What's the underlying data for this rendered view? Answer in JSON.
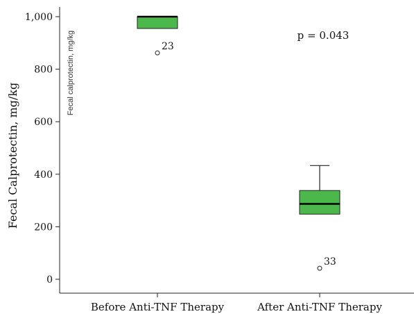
{
  "chart_data": {
    "type": "box",
    "ylabel": "Fecal Calprotectin, mg/kg",
    "inner_ylabel": "Fecal calprotectin, mg/kg",
    "ylim": [
      -40,
      1040
    ],
    "yticks": [
      0,
      200,
      400,
      600,
      800,
      1000
    ],
    "ytick_labels": [
      "0",
      "200",
      "400",
      "600",
      "800",
      "1,000"
    ],
    "grid": false,
    "annotation": "p = 0.043",
    "box_color": "#4cb84c",
    "groups": [
      {
        "label": "Before Anti-TNF Therapy",
        "whisker_low": 955,
        "q1": 955,
        "median": 1000,
        "q3": 1000,
        "whisker_high": 1000,
        "outliers": [
          {
            "value": 862,
            "label": "23"
          }
        ]
      },
      {
        "label": "After Anti-TNF Therapy",
        "whisker_low": 248,
        "q1": 248,
        "median": 287,
        "q3": 338,
        "whisker_high": 433,
        "outliers": [
          {
            "value": 42,
            "label": "33"
          }
        ]
      }
    ]
  }
}
